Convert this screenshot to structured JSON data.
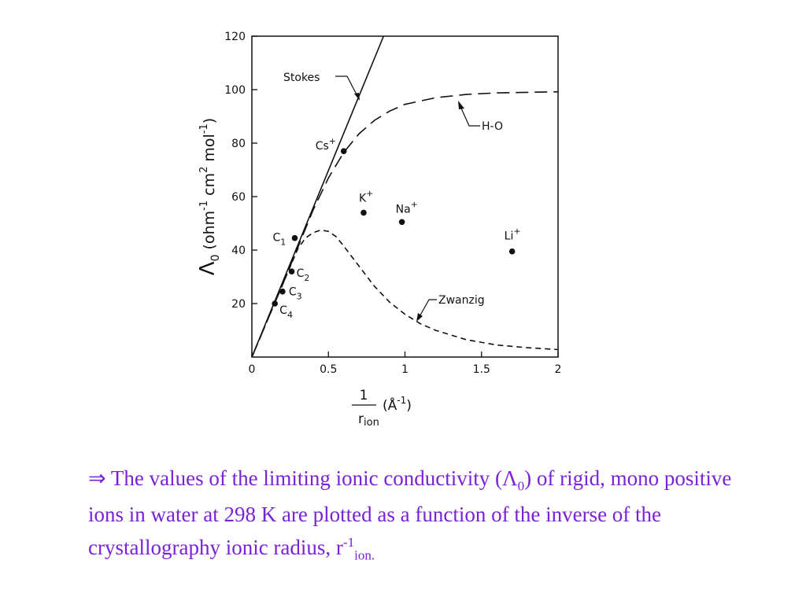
{
  "chart_data": {
    "type": "scatter",
    "xlim": [
      0,
      2
    ],
    "ylim": [
      0,
      120
    ],
    "x_ticks": [
      0,
      0.5,
      1,
      1.5,
      2
    ],
    "x_tick_labels": [
      "0",
      "0.5",
      "1",
      "1.5",
      "2"
    ],
    "y_ticks": [
      20,
      40,
      60,
      80,
      100,
      120
    ],
    "y_tick_labels": [
      "20",
      "40",
      "60",
      "80",
      "100",
      "120"
    ],
    "ylabel": {
      "main": "Λ",
      "sub0": "0",
      "open": " (ohm",
      "sup1": "-1",
      "cm": " cm",
      "sup2": "2",
      "mol": " mol",
      "sup3": "-1",
      "close": ")"
    },
    "xlabel": {
      "num": "1",
      "den_main": "r",
      "den_sub": "ion",
      "unit": "(Å",
      "unit_sup": "-1",
      "unit_close": ")"
    },
    "points": [
      {
        "label": "Cs",
        "sup": "+",
        "x": 0.6,
        "y": 77
      },
      {
        "label": "K",
        "sup": "+",
        "x": 0.73,
        "y": 54
      },
      {
        "label": "Na",
        "sup": "+",
        "x": 0.98,
        "y": 50.5
      },
      {
        "label": "Li",
        "sup": "+",
        "x": 1.7,
        "y": 39.5
      },
      {
        "label": "C",
        "sub": "1",
        "x": 0.28,
        "y": 44.5
      },
      {
        "label": "C",
        "sub": "2",
        "x": 0.26,
        "y": 32
      },
      {
        "label": "C",
        "sub": "3",
        "x": 0.2,
        "y": 24.5
      },
      {
        "label": "C",
        "sub": "4",
        "x": 0.15,
        "y": 20
      }
    ],
    "series": [
      {
        "name": "Stokes",
        "style": "solid",
        "x": [
          0,
          0.86
        ],
        "y": [
          0,
          120
        ]
      },
      {
        "name": "H-O",
        "style": "long-dash",
        "x": [
          0,
          0.1,
          0.2,
          0.3,
          0.4,
          0.5,
          0.6,
          0.7,
          0.8,
          0.9,
          1.0,
          1.2,
          1.4,
          1.6,
          1.8,
          2.0
        ],
        "y": [
          0,
          13.5,
          27,
          41,
          55,
          67,
          76.5,
          83.5,
          88.5,
          92,
          94.5,
          97,
          98.2,
          98.8,
          99,
          99.2
        ]
      },
      {
        "name": "Zwanzig",
        "style": "short-dash",
        "x": [
          0,
          0.1,
          0.2,
          0.3,
          0.35,
          0.4,
          0.45,
          0.5,
          0.55,
          0.6,
          0.7,
          0.8,
          0.9,
          1.0,
          1.1,
          1.2,
          1.4,
          1.6,
          1.8,
          2.0
        ],
        "y": [
          0,
          13.5,
          27,
          40.5,
          44.5,
          46.5,
          47.5,
          47,
          45,
          41.5,
          34,
          26.5,
          20.5,
          16,
          12.5,
          10,
          6.5,
          4.5,
          3.5,
          2.8
        ]
      }
    ],
    "curve_labels": {
      "stokes": "Stokes",
      "ho": "H-O",
      "zwanzig": "Zwanzig"
    }
  },
  "caption": {
    "arrow": "⇒",
    "text1": " The values of the limiting ionic conductivity (Λ",
    "sub0": "0",
    "text2": ") of rigid, mono positive ions in water at 298 K are plotted as a function of the inverse of the crystallography ionic radius, r",
    "sup": "-1",
    "sub_ion": "ion."
  },
  "colors": {
    "caption": "#7a22d6",
    "ink": "#111111"
  }
}
